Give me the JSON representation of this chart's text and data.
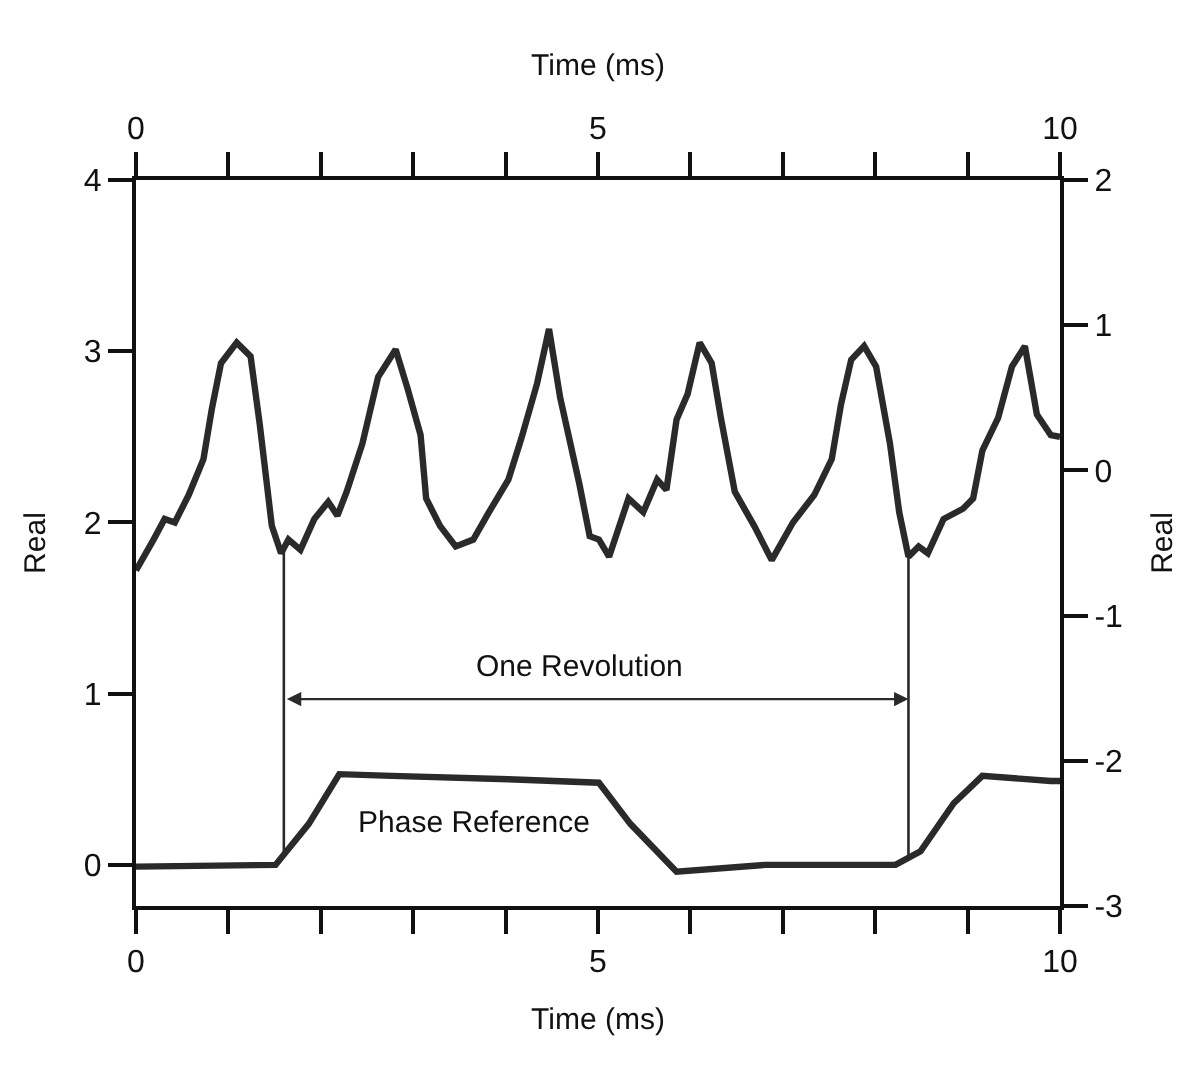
{
  "chart_data": {
    "type": "line",
    "xlabel": "Time (ms)",
    "x2label": "Time (ms)",
    "ylabel": "Real",
    "y2label": "Real",
    "xlim": [
      0,
      10
    ],
    "xticks": [
      0,
      {
        "value": 1,
        "label": null
      },
      {
        "value": 2,
        "label": null
      },
      {
        "value": 3,
        "label": null
      },
      {
        "value": 4,
        "label": null
      },
      5,
      {
        "value": 6,
        "label": null
      },
      {
        "value": 7,
        "label": null
      },
      {
        "value": 8,
        "label": null
      },
      {
        "value": 9,
        "label": null
      },
      10
    ],
    "x2lim": [
      0,
      10
    ],
    "x2ticks": [
      0,
      {
        "value": 1,
        "label": null
      },
      {
        "value": 2,
        "label": null
      },
      {
        "value": 3,
        "label": null
      },
      {
        "value": 4,
        "label": null
      },
      5,
      {
        "value": 6,
        "label": null
      },
      {
        "value": 7,
        "label": null
      },
      {
        "value": 8,
        "label": null
      },
      {
        "value": 9,
        "label": null
      },
      10
    ],
    "ylim": [
      -0.24,
      4
    ],
    "yticks": [
      0,
      1,
      2,
      3,
      4
    ],
    "y2lim": [
      -3,
      2
    ],
    "y2ticks": [
      -3,
      -2,
      -1,
      0,
      1,
      2
    ],
    "series": [
      {
        "color": "#2a2a2a",
        "x": [
          0,
          0.19,
          0.31,
          0.42,
          0.57,
          0.73,
          0.82,
          0.92,
          1.09,
          1.24,
          1.34,
          1.47,
          1.57,
          1.65,
          1.78,
          1.93,
          2.08,
          2.18,
          2.28,
          2.45,
          2.62,
          2.81,
          2.94,
          3.08,
          3.14,
          3.29,
          3.46,
          3.65,
          3.82,
          4.03,
          4.17,
          4.34,
          4.47,
          4.59,
          4.8,
          4.91,
          5.01,
          5.12,
          5.33,
          5.49,
          5.64,
          5.74,
          5.85,
          5.97,
          6.1,
          6.23,
          6.33,
          6.48,
          6.69,
          6.88,
          7.11,
          7.34,
          7.53,
          7.63,
          7.74,
          7.88,
          8.01,
          8.16,
          8.26,
          8.36,
          8.47,
          8.57,
          8.74,
          8.95,
          9.06,
          9.16,
          9.33,
          9.48,
          9.62,
          9.75,
          9.9,
          10
        ],
        "values": [
          1.72,
          1.9,
          2.02,
          2.0,
          2.16,
          2.37,
          2.66,
          2.93,
          3.05,
          2.97,
          2.57,
          1.98,
          1.82,
          1.9,
          1.84,
          2.02,
          2.12,
          2.04,
          2.18,
          2.46,
          2.85,
          3.01,
          2.78,
          2.51,
          2.14,
          1.98,
          1.86,
          1.9,
          2.06,
          2.25,
          2.49,
          2.81,
          3.13,
          2.73,
          2.22,
          1.92,
          1.9,
          1.8,
          2.14,
          2.06,
          2.25,
          2.19,
          2.6,
          2.75,
          3.05,
          2.93,
          2.61,
          2.18,
          1.98,
          1.78,
          2.0,
          2.16,
          2.37,
          2.69,
          2.95,
          3.03,
          2.91,
          2.46,
          2.06,
          1.8,
          1.86,
          1.82,
          2.02,
          2.08,
          2.14,
          2.42,
          2.61,
          2.91,
          3.03,
          2.63,
          2.51,
          2.5
        ]
      },
      {
        "color": "#2a2a2a",
        "x": [
          0,
          1.51,
          1.87,
          2.2,
          2.77,
          4.03,
          5.01,
          5.35,
          5.85,
          6.81,
          8.22,
          8.49,
          8.85,
          9.16,
          9.9,
          10
        ],
        "values": [
          -0.01,
          0.0,
          0.24,
          0.53,
          0.52,
          0.5,
          0.48,
          0.24,
          -0.04,
          0.0,
          0.0,
          0.08,
          0.36,
          0.52,
          0.49,
          0.49
        ]
      }
    ],
    "ref_lines": [
      {
        "axis": "x",
        "value": 1.6,
        "label": null
      },
      {
        "axis": "x",
        "value": 8.36,
        "label": null
      }
    ],
    "annotations": [
      "One Revolution",
      "Phase Reference"
    ],
    "line_style": "solid",
    "marker": "none"
  }
}
